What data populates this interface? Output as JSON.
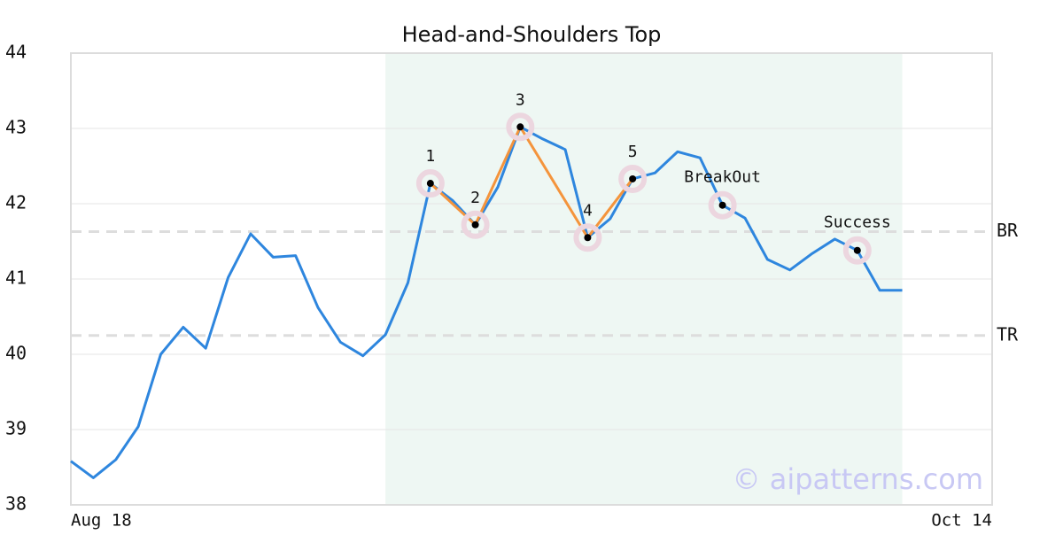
{
  "chart_data": {
    "type": "line",
    "title": "Head-and-Shoulders Top",
    "categories": [
      "Aug 18",
      null,
      null,
      null,
      null,
      null,
      null,
      null,
      null,
      null,
      null,
      null,
      null,
      null,
      null,
      null,
      null,
      null,
      null,
      null,
      null,
      null,
      null,
      null,
      null,
      null,
      null,
      null,
      null,
      null,
      null,
      null,
      null,
      null,
      null,
      null,
      null,
      null,
      null,
      null,
      null,
      "Oct 14"
    ],
    "series": [
      {
        "color": "#2e86de",
        "values": [
          38.58,
          38.36,
          38.6,
          39.04,
          40.0,
          40.36,
          40.08,
          41.02,
          41.6,
          41.29,
          41.31,
          40.62,
          40.16,
          39.98,
          40.26,
          40.95,
          42.27,
          42.04,
          41.72,
          42.22,
          43.02,
          42.86,
          42.72,
          41.55,
          41.8,
          42.33,
          42.41,
          42.69,
          42.61,
          41.98,
          41.81,
          41.26,
          41.12,
          41.34,
          41.53,
          41.38,
          40.85,
          40.85,
          null,
          null,
          null,
          null
        ]
      }
    ],
    "ylim": [
      38,
      44
    ],
    "yticks": [
      38,
      39,
      40,
      41,
      42,
      43,
      44
    ],
    "grid": true,
    "highlight_range": [
      14,
      37
    ],
    "highlight_color": "#eef7f3",
    "pattern": {
      "color": "#f4943c",
      "points": [
        {
          "label": "1",
          "index": 16,
          "value": 42.27
        },
        {
          "label": "2",
          "index": 18,
          "value": 41.72
        },
        {
          "label": "3",
          "index": 20,
          "value": 43.02
        },
        {
          "label": "4",
          "index": 23,
          "value": 41.55
        },
        {
          "label": "5",
          "index": 25,
          "value": 42.33
        }
      ]
    },
    "annotations": [
      {
        "label": "BreakOut",
        "index": 29,
        "value": 41.98
      },
      {
        "label": "Success",
        "index": 35,
        "value": 41.38
      }
    ],
    "levels": [
      {
        "label": "BR",
        "value": 41.63
      },
      {
        "label": "TR",
        "value": 40.25
      }
    ],
    "watermark": "© aipatterns.com"
  }
}
